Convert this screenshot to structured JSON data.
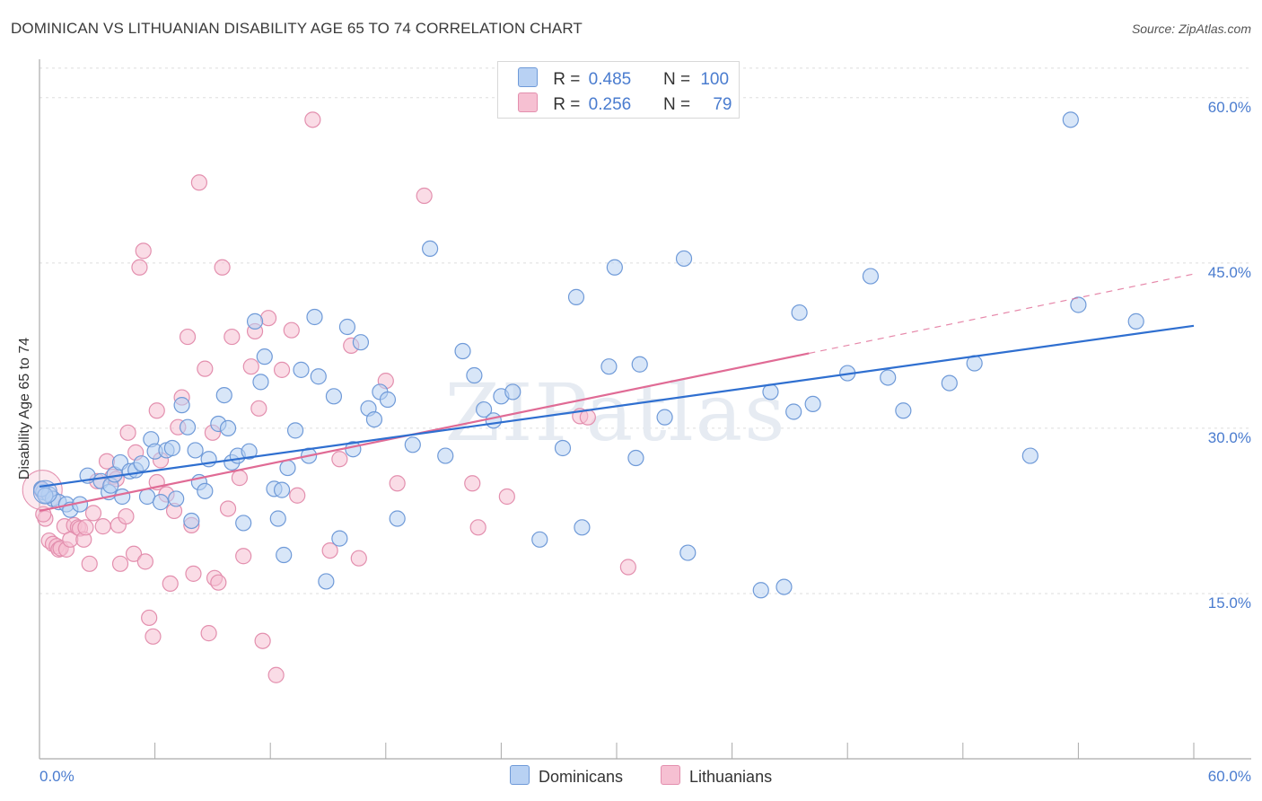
{
  "title": "DOMINICAN VS LITHUANIAN DISABILITY AGE 65 TO 74 CORRELATION CHART",
  "source": "Source: ZipAtlas.com",
  "watermark": "ZIPatlas",
  "legend": {
    "rows": [
      {
        "r_label": "R =",
        "r_value": "0.485",
        "n_label": "N =",
        "n_value": "100"
      },
      {
        "r_label": "R =",
        "r_value": "0.256",
        "n_label": "N =",
        "n_value": "79"
      }
    ]
  },
  "bottom_legend": [
    "Dominicans",
    "Lithuanians"
  ],
  "colors": {
    "blue_fill": "#b8d1f3",
    "blue_stroke": "#6f9ad8",
    "blue_line": "#2f6fd0",
    "pink_fill": "#f6c0d2",
    "pink_stroke": "#e38fae",
    "pink_line": "#e06b95",
    "tick_text": "#4a7ccf",
    "grid": "#dddddd"
  },
  "chart_data": {
    "type": "scatter",
    "title": "DOMINICAN VS LITHUANIAN DISABILITY AGE 65 TO 74 CORRELATION CHART",
    "xlabel": "",
    "ylabel": "Disability Age 65 to 74",
    "xlim": [
      0,
      60
    ],
    "ylim": [
      0,
      63
    ],
    "x_tick_labels": [
      "0.0%",
      "60.0%"
    ],
    "y_ticks": [
      15,
      30,
      45,
      60
    ],
    "y_tick_labels": [
      "15.0%",
      "30.0%",
      "45.0%",
      "60.0%"
    ],
    "grid": true,
    "legend_position": "top-center",
    "series": [
      {
        "name": "Dominicans",
        "r": 0.485,
        "n": 100,
        "trend": {
          "x0": 0,
          "y0": 24.7,
          "x1": 60,
          "y1": 39.3
        },
        "points": [
          [
            0.2,
            24.2
          ],
          [
            0.5,
            24.0
          ],
          [
            0.7,
            23.6
          ],
          [
            1.0,
            23.3
          ],
          [
            1.4,
            23.1
          ],
          [
            1.6,
            22.6
          ],
          [
            2.1,
            23.1
          ],
          [
            2.5,
            25.7
          ],
          [
            3.2,
            25.2
          ],
          [
            3.6,
            24.2
          ],
          [
            3.7,
            24.8
          ],
          [
            3.9,
            25.8
          ],
          [
            4.2,
            26.9
          ],
          [
            4.3,
            23.8
          ],
          [
            4.7,
            26.1
          ],
          [
            5.0,
            26.2
          ],
          [
            5.3,
            26.8
          ],
          [
            5.6,
            23.8
          ],
          [
            5.8,
            29.0
          ],
          [
            6.0,
            27.9
          ],
          [
            6.3,
            23.3
          ],
          [
            6.6,
            28.0
          ],
          [
            6.9,
            28.2
          ],
          [
            7.1,
            23.6
          ],
          [
            7.4,
            32.1
          ],
          [
            7.7,
            30.1
          ],
          [
            7.9,
            21.6
          ],
          [
            8.1,
            28.0
          ],
          [
            8.3,
            25.1
          ],
          [
            8.6,
            24.3
          ],
          [
            8.8,
            27.2
          ],
          [
            9.3,
            30.4
          ],
          [
            9.6,
            33.0
          ],
          [
            9.8,
            30.0
          ],
          [
            10.0,
            26.9
          ],
          [
            10.3,
            27.5
          ],
          [
            10.6,
            21.4
          ],
          [
            10.9,
            27.9
          ],
          [
            11.2,
            39.7
          ],
          [
            11.5,
            34.2
          ],
          [
            11.7,
            36.5
          ],
          [
            12.2,
            24.5
          ],
          [
            12.4,
            21.8
          ],
          [
            12.7,
            18.5
          ],
          [
            12.9,
            26.4
          ],
          [
            13.3,
            29.8
          ],
          [
            13.6,
            35.3
          ],
          [
            14.0,
            27.5
          ],
          [
            14.3,
            40.1
          ],
          [
            14.5,
            34.7
          ],
          [
            14.9,
            16.1
          ],
          [
            15.3,
            32.9
          ],
          [
            15.6,
            20.0
          ],
          [
            16.0,
            39.2
          ],
          [
            16.3,
            28.1
          ],
          [
            16.7,
            37.8
          ],
          [
            17.1,
            31.8
          ],
          [
            17.4,
            30.8
          ],
          [
            17.7,
            33.3
          ],
          [
            18.1,
            32.6
          ],
          [
            18.6,
            21.8
          ],
          [
            19.4,
            28.5
          ],
          [
            20.3,
            46.3
          ],
          [
            21.1,
            27.5
          ],
          [
            22.0,
            37.0
          ],
          [
            22.6,
            34.8
          ],
          [
            23.1,
            31.7
          ],
          [
            23.6,
            30.7
          ],
          [
            24.0,
            32.9
          ],
          [
            24.6,
            33.3
          ],
          [
            26.0,
            19.9
          ],
          [
            27.2,
            28.2
          ],
          [
            27.9,
            41.9
          ],
          [
            28.2,
            21.0
          ],
          [
            29.6,
            35.6
          ],
          [
            29.9,
            44.6
          ],
          [
            31.0,
            27.3
          ],
          [
            31.2,
            35.8
          ],
          [
            32.5,
            31.0
          ],
          [
            33.5,
            45.4
          ],
          [
            33.7,
            18.7
          ],
          [
            37.5,
            15.3
          ],
          [
            38.0,
            33.3
          ],
          [
            38.7,
            15.6
          ],
          [
            39.2,
            31.5
          ],
          [
            39.5,
            40.5
          ],
          [
            40.2,
            32.2
          ],
          [
            42.0,
            35.0
          ],
          [
            43.2,
            43.8
          ],
          [
            44.1,
            34.6
          ],
          [
            44.9,
            31.6
          ],
          [
            47.3,
            34.1
          ],
          [
            48.6,
            35.9
          ],
          [
            51.5,
            27.5
          ],
          [
            53.6,
            58.0
          ],
          [
            54.0,
            41.2
          ],
          [
            57.0,
            39.7
          ],
          [
            0.1,
            24.5
          ],
          [
            0.3,
            23.9
          ],
          [
            12.6,
            24.4
          ]
        ]
      },
      {
        "name": "Lithuanians",
        "r": 0.256,
        "n": 79,
        "trend": {
          "x0": 0,
          "y0": 22.5,
          "x1": 40,
          "y1": 36.8
        },
        "trend_dashed": {
          "x0": 40,
          "y0": 36.8,
          "x1": 60,
          "y1": 44.0
        },
        "points": [
          [
            0.1,
            24.4
          ],
          [
            0.3,
            21.8
          ],
          [
            0.5,
            19.8
          ],
          [
            0.7,
            19.5
          ],
          [
            0.9,
            19.3
          ],
          [
            1.0,
            19.0
          ],
          [
            1.1,
            19.1
          ],
          [
            1.3,
            21.1
          ],
          [
            1.4,
            19.0
          ],
          [
            1.6,
            19.9
          ],
          [
            1.8,
            21.2
          ],
          [
            2.0,
            21.0
          ],
          [
            2.1,
            20.9
          ],
          [
            2.3,
            19.9
          ],
          [
            2.6,
            17.7
          ],
          [
            2.8,
            22.3
          ],
          [
            3.0,
            25.2
          ],
          [
            3.3,
            21.1
          ],
          [
            3.5,
            27.0
          ],
          [
            3.8,
            25.6
          ],
          [
            4.1,
            21.2
          ],
          [
            4.2,
            17.7
          ],
          [
            4.5,
            22.0
          ],
          [
            4.6,
            29.6
          ],
          [
            4.9,
            18.6
          ],
          [
            5.0,
            27.8
          ],
          [
            5.4,
            46.1
          ],
          [
            5.5,
            17.9
          ],
          [
            5.7,
            12.8
          ],
          [
            5.9,
            11.1
          ],
          [
            6.1,
            31.6
          ],
          [
            6.3,
            27.1
          ],
          [
            6.6,
            24.0
          ],
          [
            6.8,
            15.9
          ],
          [
            7.0,
            22.5
          ],
          [
            7.2,
            30.1
          ],
          [
            7.4,
            32.8
          ],
          [
            7.7,
            38.3
          ],
          [
            7.9,
            21.2
          ],
          [
            8.0,
            16.8
          ],
          [
            8.3,
            52.3
          ],
          [
            8.6,
            35.4
          ],
          [
            8.8,
            11.4
          ],
          [
            9.1,
            16.4
          ],
          [
            9.3,
            16.0
          ],
          [
            9.5,
            44.6
          ],
          [
            9.8,
            22.7
          ],
          [
            10.0,
            38.3
          ],
          [
            10.4,
            25.5
          ],
          [
            10.6,
            18.4
          ],
          [
            11.0,
            35.6
          ],
          [
            11.2,
            38.8
          ],
          [
            11.4,
            31.8
          ],
          [
            11.6,
            10.7
          ],
          [
            11.9,
            40.0
          ],
          [
            12.3,
            7.6
          ],
          [
            12.6,
            35.3
          ],
          [
            13.1,
            38.9
          ],
          [
            13.4,
            23.9
          ],
          [
            14.2,
            58.0
          ],
          [
            15.1,
            18.9
          ],
          [
            15.6,
            27.2
          ],
          [
            16.2,
            37.5
          ],
          [
            16.6,
            18.2
          ],
          [
            18.0,
            34.3
          ],
          [
            18.6,
            25.0
          ],
          [
            20.0,
            51.1
          ],
          [
            22.5,
            25.0
          ],
          [
            22.8,
            21.0
          ],
          [
            24.3,
            23.8
          ],
          [
            28.1,
            31.1
          ],
          [
            28.5,
            31.0
          ],
          [
            30.6,
            17.4
          ],
          [
            5.2,
            44.6
          ],
          [
            2.4,
            21.0
          ],
          [
            6.1,
            25.1
          ],
          [
            9.0,
            29.6
          ],
          [
            4.0,
            25.4
          ],
          [
            0.2,
            22.2
          ]
        ]
      }
    ]
  }
}
